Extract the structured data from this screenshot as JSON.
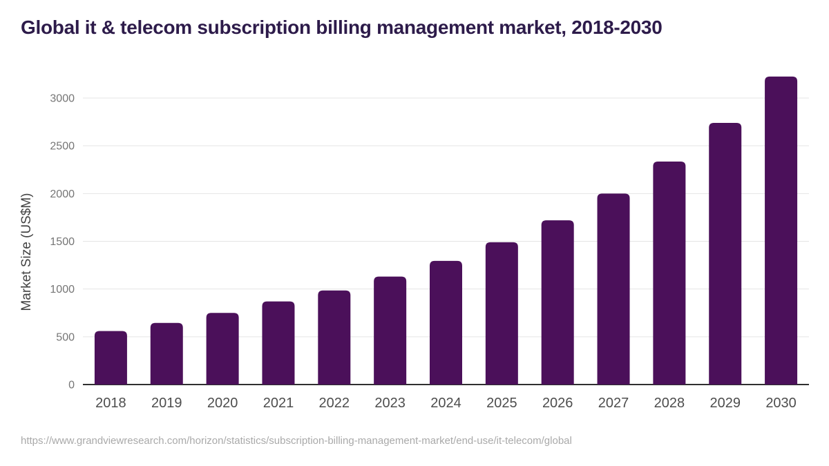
{
  "chart": {
    "title": "Global it & telecom subscription billing management market, 2018-2030"
  },
  "footer": {
    "source_url": "https://www.grandviewresearch.com/horizon/statistics/subscription-billing-management-market/end-use/it-telecom/global"
  },
  "chart_data": {
    "type": "bar",
    "title": "Global it & telecom subscription billing management market, 2018-2030",
    "categories": [
      "2018",
      "2019",
      "2020",
      "2021",
      "2022",
      "2023",
      "2024",
      "2025",
      "2026",
      "2027",
      "2028",
      "2029",
      "2030"
    ],
    "values": [
      560,
      645,
      750,
      870,
      985,
      1130,
      1295,
      1490,
      1720,
      2000,
      2335,
      2740,
      3225
    ],
    "xlabel": "",
    "ylabel": "Market Size (US$M)",
    "ylim": [
      0,
      3300
    ],
    "yticks": [
      0,
      500,
      1000,
      1500,
      2000,
      2500,
      3000
    ],
    "grid": true,
    "legend": false,
    "colors": {
      "bar": "#4B105A",
      "title": "#2D1B4A",
      "gridline": "#E4E4E4",
      "axis_line": "#2F2F2F",
      "y_tick_label": "#757575",
      "x_tick_label": "#4D4D4D",
      "axis_title": "#424242",
      "source_url": "#A9A9A9",
      "background": "#FFFFFF"
    }
  }
}
